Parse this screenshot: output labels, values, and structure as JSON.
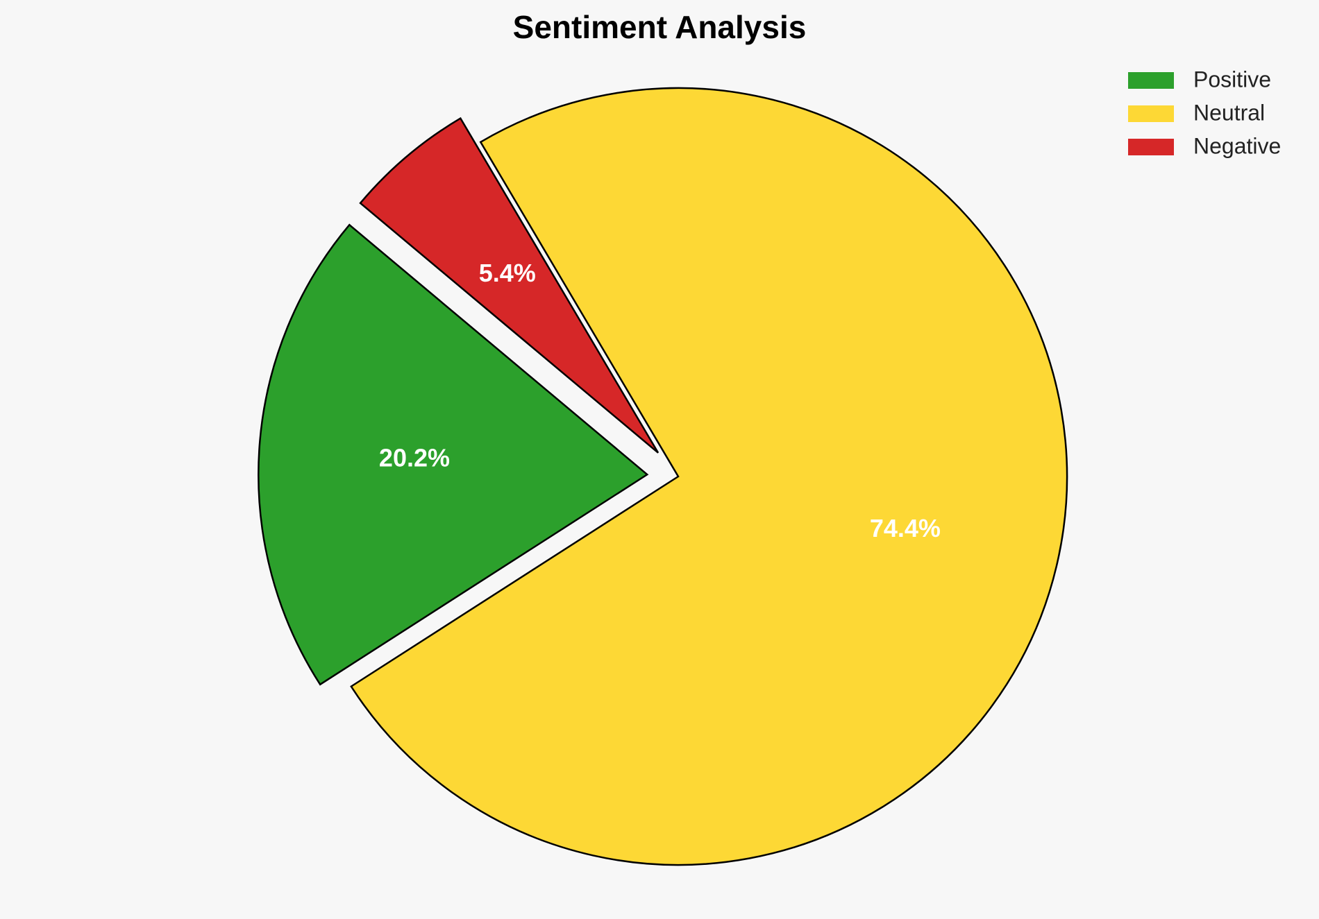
{
  "chart_data": {
    "type": "pie",
    "title": "Sentiment Analysis",
    "start_angle_deg": 140,
    "direction": "counterclockwise",
    "legend_position": "top-right",
    "slices": [
      {
        "label": "Positive",
        "value": 20.2,
        "display": "20.2%",
        "color": "#2ca02c",
        "exploded": true
      },
      {
        "label": "Neutral",
        "value": 74.4,
        "display": "74.4%",
        "color": "#fdd835",
        "exploded": false
      },
      {
        "label": "Negative",
        "value": 5.4,
        "display": "5.4%",
        "color": "#d62728",
        "exploded": true
      }
    ]
  }
}
